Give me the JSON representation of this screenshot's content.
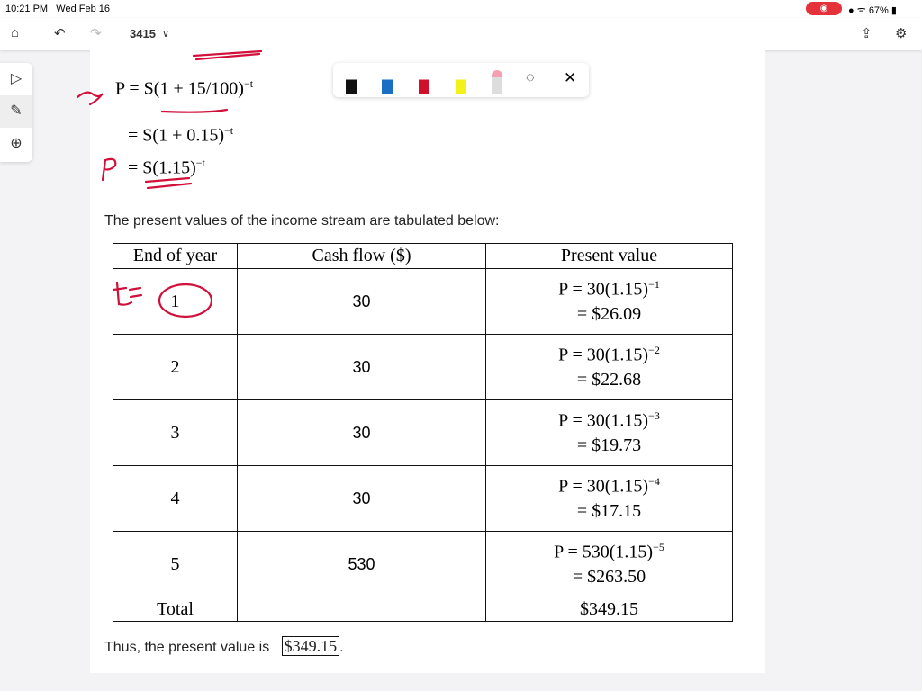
{
  "status": {
    "time": "10:21 PM",
    "date": "Wed Feb 16",
    "battery": "67%"
  },
  "toolbar": {
    "doc_title": "3415"
  },
  "math": {
    "l1": "P = S(1 + 15/100)",
    "l1exp": "−t",
    "l2": "= S(1 + 0.15)",
    "l2exp": "−t",
    "l3": "= S(1.15)",
    "l3exp": "−t"
  },
  "intro": "The present values of the income stream are tabulated below:",
  "table": {
    "headers": [
      "End of year",
      "Cash flow ($)",
      "Present value"
    ],
    "rows": [
      {
        "year": "1",
        "cash": "30",
        "formula": "P = 30(1.15)",
        "exp": "−1",
        "value": "= $26.09"
      },
      {
        "year": "2",
        "cash": "30",
        "formula": "P = 30(1.15)",
        "exp": "−2",
        "value": "= $22.68"
      },
      {
        "year": "3",
        "cash": "30",
        "formula": "P = 30(1.15)",
        "exp": "−3",
        "value": "= $19.73"
      },
      {
        "year": "4",
        "cash": "30",
        "formula": "P = 30(1.15)",
        "exp": "−4",
        "value": "= $17.15"
      },
      {
        "year": "5",
        "cash": "530",
        "formula": "P = 530(1.15)",
        "exp": "−5",
        "value": "= $263.50"
      }
    ],
    "total_label": "Total",
    "total_value": "$349.15"
  },
  "conclusion": {
    "text": "Thus, the present value is",
    "answer": "$349.15"
  },
  "ink": {
    "color": "#d0103a"
  }
}
